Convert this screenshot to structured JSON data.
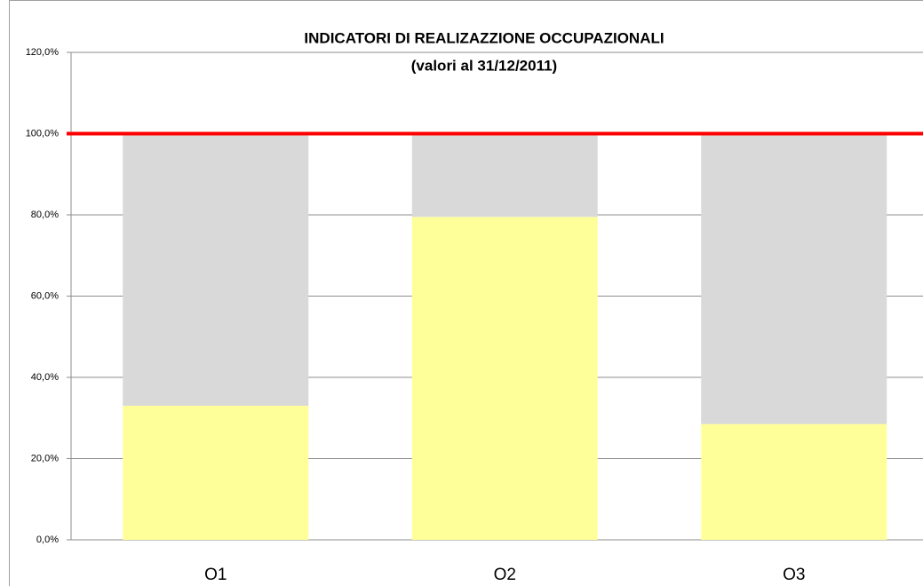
{
  "chart_data": {
    "type": "stacked_bar",
    "title": "INDICATORI  DI REALIZAZZIONE OCCUPAZIONALI",
    "subtitle": "(valori al 31/12/2011)",
    "categories": [
      "O1",
      "O2",
      "O3"
    ],
    "series": [
      {
        "color": "#ffff99",
        "values": [
          33,
          79.5,
          28.5
        ]
      },
      {
        "color": "#d9d9d9",
        "values": [
          67,
          20.5,
          71.5
        ]
      }
    ],
    "ylim": [
      0,
      120
    ],
    "yticks": [
      {
        "value": 0,
        "label": "0,0%"
      },
      {
        "value": 20,
        "label": "20,0%"
      },
      {
        "value": 40,
        "label": "40,0%"
      },
      {
        "value": 60,
        "label": "60,0%"
      },
      {
        "value": 80,
        "label": "80,0%"
      },
      {
        "value": 100,
        "label": "100,0%"
      },
      {
        "value": 120,
        "label": "120,0%"
      }
    ],
    "grid": true,
    "reference_line": {
      "value": 100,
      "color": "#ff0000"
    }
  }
}
